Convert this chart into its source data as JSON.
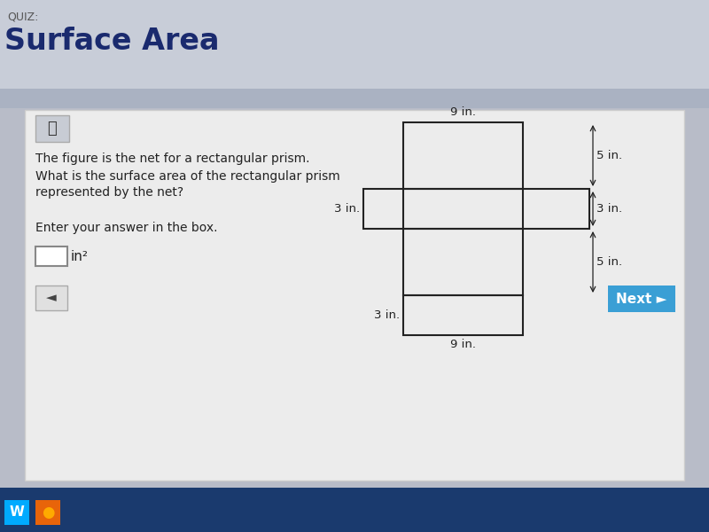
{
  "bg_outer": "#b8bcc8",
  "bg_header": "#c8cdd8",
  "bg_content": "#ebebeb",
  "quiz_label": "QUIZ:",
  "quiz_label_color": "#555555",
  "title": "Surface Area",
  "title_color": "#1a2a6e",
  "question_line1": "The figure is the net for a rectangular prism.",
  "question_line2": "What is the surface area of the rectangular prism",
  "question_line3": "represented by the net?",
  "enter_answer": "Enter your answer in the box.",
  "dim_9_top": "9 in.",
  "dim_5_top": "5 in.",
  "dim_3_left": "3 in.",
  "dim_3_right": "3 in.",
  "dim_5_bot": "5 in.",
  "dim_3_bot_left": "3 in.",
  "dim_9_bot": "9 in.",
  "net_color": "#222222",
  "next_btn_color": "#3a9fd5",
  "next_btn_text": "Next ►",
  "back_btn_text": "◄",
  "answer_box_label": "in²",
  "calc_icon": "⌹",
  "taskbar_color": "#1a3a6e",
  "win_color": "#00aaff",
  "ff_color": "#e8640a"
}
